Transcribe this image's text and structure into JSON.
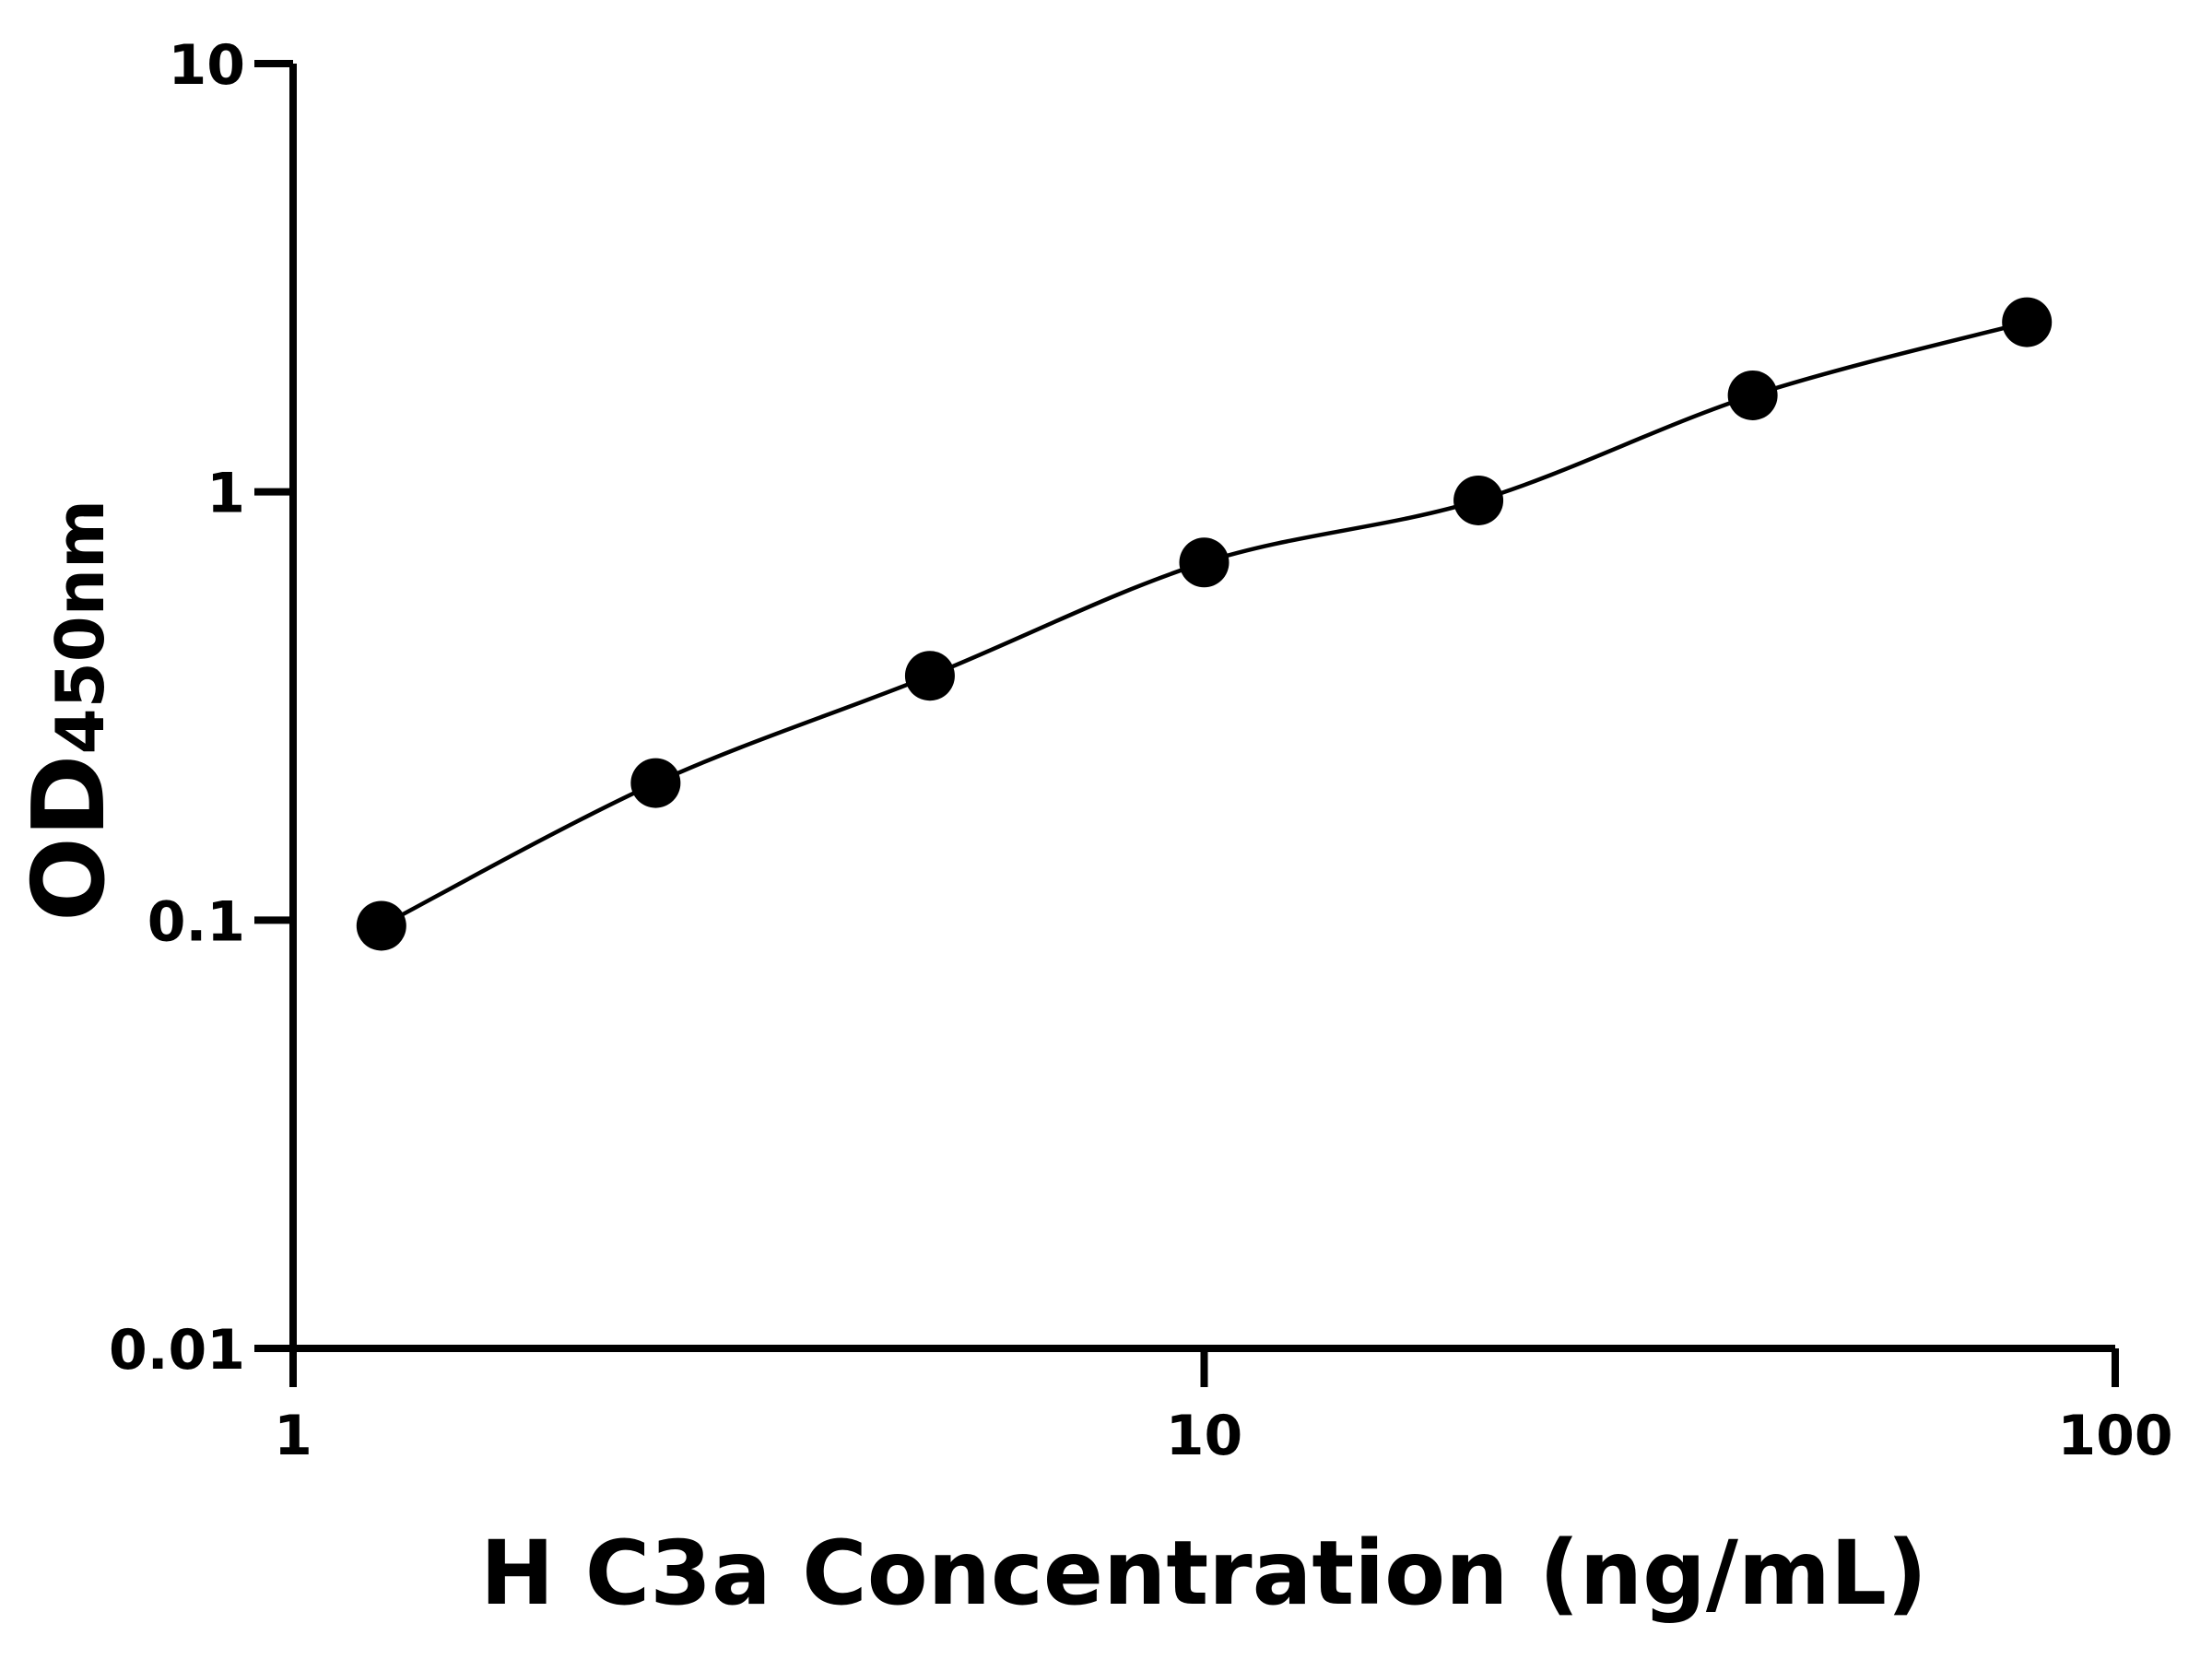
{
  "chart_data": {
    "type": "scatter",
    "title": "",
    "xlabel": "H C3a Concentration (ng/mL)",
    "ylabel_main": "OD",
    "ylabel_sub": "450nm",
    "x_scale": "log",
    "y_scale": "log",
    "xlim": [
      1,
      100
    ],
    "ylim": [
      0.01,
      10
    ],
    "x_ticks": [
      1,
      10,
      100
    ],
    "x_tick_labels": [
      "1",
      "10",
      "100"
    ],
    "y_ticks": [
      0.01,
      0.1,
      1,
      10
    ],
    "y_tick_labels": [
      "0.01",
      "0.1",
      "1",
      "10"
    ],
    "grid": false,
    "legend": "none",
    "marker_color": "#000000",
    "line_color": "#000000",
    "series": [
      {
        "x": [
          1.25,
          2.5,
          5,
          10,
          20,
          40,
          80
        ],
        "y": [
          0.097,
          0.209,
          0.372,
          0.684,
          0.955,
          1.68,
          2.49
        ],
        "fit_line": true
      }
    ]
  }
}
